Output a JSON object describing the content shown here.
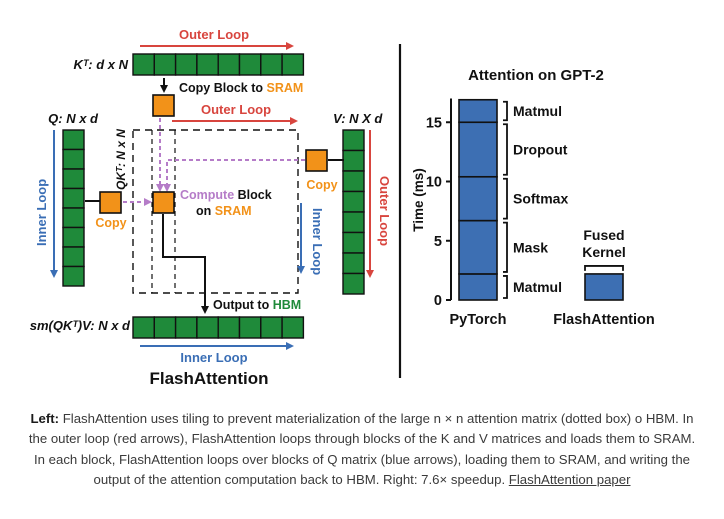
{
  "diagram": {
    "outer_loop_top": "Outer Loop",
    "outer_loop_mid": "Outer Loop",
    "outer_loop_right": "Outer Loop",
    "inner_loop_left": "Inner Loop",
    "inner_loop_mid": "Inner Loop",
    "inner_loop_bottom": "Inner Loop",
    "kt_label": "Kᵀ: d x N",
    "q_label": "Q: N x d",
    "v_label": "V: N X d",
    "qkt_label": "QKᵀ: N x N",
    "copy_block_prefix": "Copy Block to ",
    "copy_block_highlight": "SRAM",
    "compute_word": "Compute",
    "block_word": " Block",
    "on_word": "on ",
    "sram_word": "SRAM",
    "copy_left": "Copy",
    "copy_right": "Copy",
    "output_prefix": "Output to ",
    "output_highlight": "HBM",
    "output_label": "sm(QKᵀ)V: N x d",
    "title": "FlashAttention"
  },
  "colors": {
    "green": "#1f8a3a",
    "orange": "#f29219",
    "red": "#d8453e",
    "blue": "#3a6eb5",
    "purple": "#b57cc8",
    "bar_fill": "#3d6fb3"
  },
  "chart_data": {
    "type": "bar",
    "title": "Attention on GPT-2",
    "ylabel": "Time (ms)",
    "xlabel": "",
    "ylim": [
      0,
      17
    ],
    "yticks": [
      0,
      5,
      10,
      15
    ],
    "categories": [
      "PyTorch",
      "FlashAttention"
    ],
    "stacks": [
      {
        "category": "PyTorch",
        "segments": [
          {
            "name": "Matmul",
            "from": 0,
            "to": 2.2
          },
          {
            "name": "Mask",
            "from": 2.2,
            "to": 6.7
          },
          {
            "name": "Softmax",
            "from": 6.7,
            "to": 10.4
          },
          {
            "name": "Dropout",
            "from": 10.4,
            "to": 15.0
          },
          {
            "name": "Matmul",
            "from": 15.0,
            "to": 16.9
          }
        ]
      },
      {
        "category": "FlashAttention",
        "segments": [
          {
            "name": "Fused Kernel",
            "from": 0,
            "to": 2.2
          }
        ]
      }
    ],
    "fused_label_line1": "Fused",
    "fused_label_line2": "Kernel",
    "grid": false
  },
  "caption": {
    "left_label": "Left:",
    "text": " FlashAttention uses tiling to prevent materialization of the large n × n attention matrix (dotted box) o HBM. In the outer loop (red arrows), FlashAttention loops through blocks of the K and V matrices and loads them to SRAM. In each block, FlashAttention loops over blocks of Q matrix (blue arrows), loading them to SRAM, and writing the output of the attention computation back to HBM. Right: 7.6× speedup. ",
    "link_text": "FlashAttention paper"
  }
}
